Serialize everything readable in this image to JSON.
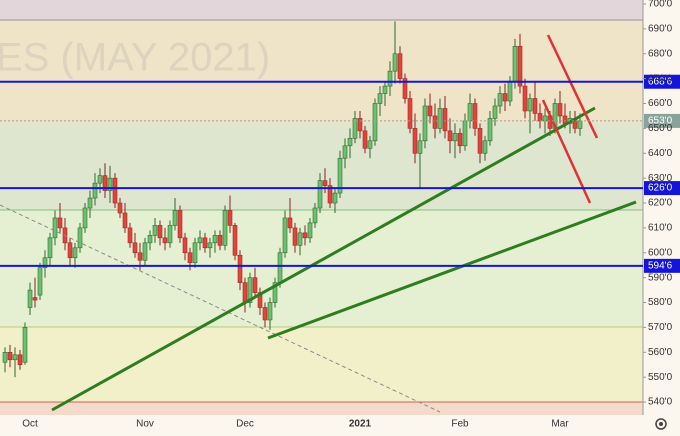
{
  "chart_data": {
    "type": "candlestick",
    "watermark": "ES (MAY 2021)",
    "categories": [
      null,
      null,
      null,
      null,
      null,
      "Oct",
      null,
      null,
      null,
      null,
      null,
      null,
      null,
      null,
      null,
      null,
      null,
      null,
      null,
      null,
      null,
      null,
      null,
      null,
      null,
      null,
      null,
      null,
      "Nov",
      null,
      null,
      null,
      null,
      null,
      null,
      null,
      null,
      null,
      null,
      null,
      null,
      null,
      null,
      null,
      null,
      null,
      null,
      null,
      "Dec",
      null,
      null,
      null,
      null,
      null,
      null,
      null,
      null,
      null,
      null,
      null,
      null,
      null,
      null,
      null,
      null,
      null,
      null,
      null,
      null,
      null,
      null,
      "2021",
      null,
      null,
      null,
      null,
      null,
      null,
      null,
      null,
      null,
      null,
      null,
      null,
      null,
      null,
      null,
      null,
      null,
      null,
      null,
      "Feb",
      null,
      null,
      null,
      null,
      null,
      null,
      null,
      null,
      null,
      null,
      null,
      null,
      null,
      null,
      null,
      null,
      null,
      null,
      null,
      "Mar",
      null,
      null,
      null,
      null
    ],
    "open": [
      556,
      560,
      557,
      559,
      556,
      578,
      582,
      583,
      594,
      598,
      606,
      614,
      610,
      604,
      598,
      602,
      610,
      618,
      622,
      628,
      631,
      625,
      630,
      620,
      616,
      610,
      604,
      600,
      597,
      604,
      607,
      611,
      606,
      604,
      611,
      617,
      606,
      600,
      596,
      604,
      606,
      602,
      604,
      607,
      603,
      617,
      611,
      599,
      588,
      580,
      590,
      584,
      578,
      573,
      580,
      588,
      600,
      614,
      610,
      603,
      608,
      606,
      612,
      618,
      629,
      627,
      620,
      624,
      638,
      643,
      646,
      654,
      649,
      642,
      645,
      660,
      664,
      667,
      673,
      680,
      670,
      662,
      650,
      640,
      645,
      659,
      655,
      650,
      658,
      649,
      645,
      648,
      643,
      653,
      660,
      650,
      640,
      645,
      654,
      659,
      664,
      661,
      669,
      683,
      667,
      657,
      662,
      656,
      653,
      655,
      650,
      660,
      655,
      652,
      654,
      650
    ],
    "high": [
      562,
      563,
      562,
      561,
      572,
      588,
      590,
      596,
      601,
      608,
      617,
      620,
      614,
      606,
      604,
      612,
      620,
      625,
      632,
      634,
      636,
      635,
      632,
      622,
      620,
      612,
      608,
      604,
      606,
      609,
      614,
      613,
      610,
      613,
      622,
      619,
      608,
      602,
      606,
      609,
      608,
      606,
      609,
      609,
      619,
      623,
      612,
      601,
      590,
      592,
      594,
      586,
      580,
      582,
      590,
      602,
      617,
      622,
      612,
      610,
      611,
      614,
      620,
      632,
      634,
      630,
      626,
      641,
      646,
      650,
      657,
      657,
      651,
      647,
      662,
      667,
      669,
      677,
      693,
      683,
      672,
      665,
      656,
      648,
      662,
      664,
      660,
      662,
      663,
      654,
      652,
      650,
      656,
      664,
      662,
      652,
      647,
      657,
      662,
      667,
      668,
      671,
      686,
      688,
      670,
      664,
      669,
      660,
      658,
      657,
      662,
      665,
      660,
      657,
      657,
      656
    ],
    "low": [
      552,
      554,
      550,
      553,
      555,
      575,
      578,
      581,
      590,
      595,
      603,
      608,
      601,
      595,
      594,
      600,
      608,
      614,
      619,
      624,
      622,
      620,
      618,
      614,
      608,
      602,
      598,
      593,
      595,
      601,
      604,
      603,
      601,
      602,
      609,
      604,
      597,
      593,
      594,
      601,
      600,
      598,
      600,
      601,
      601,
      608,
      597,
      585,
      576,
      578,
      582,
      575,
      570,
      569,
      578,
      586,
      598,
      608,
      600,
      599,
      603,
      604,
      610,
      616,
      624,
      618,
      616,
      622,
      634,
      638,
      644,
      646,
      640,
      638,
      643,
      655,
      659,
      663,
      668,
      668,
      660,
      648,
      636,
      626,
      642,
      652,
      646,
      648,
      646,
      640,
      638,
      640,
      641,
      650,
      647,
      636,
      637,
      643,
      651,
      656,
      657,
      659,
      666,
      664,
      654,
      648,
      653,
      650,
      648,
      647,
      648,
      652,
      650,
      648,
      648,
      647
    ],
    "close": [
      560,
      557,
      559,
      555,
      570,
      585,
      581,
      594,
      598,
      606,
      614,
      610,
      604,
      598,
      602,
      610,
      618,
      622,
      628,
      631,
      625,
      630,
      620,
      616,
      610,
      604,
      600,
      597,
      604,
      607,
      611,
      606,
      604,
      611,
      617,
      606,
      600,
      596,
      604,
      606,
      602,
      604,
      607,
      603,
      617,
      611,
      599,
      588,
      580,
      590,
      584,
      578,
      573,
      580,
      588,
      600,
      614,
      610,
      603,
      608,
      606,
      612,
      618,
      629,
      627,
      620,
      624,
      638,
      643,
      646,
      654,
      649,
      642,
      645,
      660,
      664,
      667,
      673,
      680,
      670,
      662,
      650,
      640,
      645,
      659,
      655,
      650,
      658,
      649,
      645,
      648,
      643,
      653,
      660,
      650,
      640,
      645,
      654,
      659,
      664,
      661,
      669,
      683,
      667,
      657,
      662,
      656,
      653,
      655,
      650,
      660,
      655,
      652,
      654,
      650,
      653
    ],
    "up_color": "#6cc070",
    "down_color": "#e2433b",
    "ylim": [
      534.8,
      701.6
    ],
    "yticks": [
      {
        "value": 540,
        "label": "540'0"
      },
      {
        "value": 550,
        "label": "550'0"
      },
      {
        "value": 560,
        "label": "560'0"
      },
      {
        "value": 570,
        "label": "570'0"
      },
      {
        "value": 580,
        "label": "580'0"
      },
      {
        "value": 590,
        "label": "590'0"
      },
      {
        "value": 600,
        "label": "600'0"
      },
      {
        "value": 610,
        "label": "610'0"
      },
      {
        "value": 620,
        "label": "620'0"
      },
      {
        "value": 630,
        "label": "630'0"
      },
      {
        "value": 640,
        "label": "640'0"
      },
      {
        "value": 650,
        "label": "650'0"
      },
      {
        "value": 660,
        "label": "660'0"
      },
      {
        "value": 670,
        "label": "670'0"
      },
      {
        "value": 680,
        "label": "680'0"
      },
      {
        "value": 690,
        "label": "690'0"
      },
      {
        "value": 700,
        "label": "700'0"
      }
    ],
    "levels": [
      {
        "value": 668.75,
        "label": "668'6",
        "color": "#1515d8"
      },
      {
        "value": 653,
        "label": "653'0",
        "color": "#8aa39a"
      },
      {
        "value": 626,
        "label": "626'0",
        "color": "#1515d8"
      },
      {
        "value": 594.75,
        "label": "594'6",
        "color": "#1515d8"
      }
    ]
  }
}
